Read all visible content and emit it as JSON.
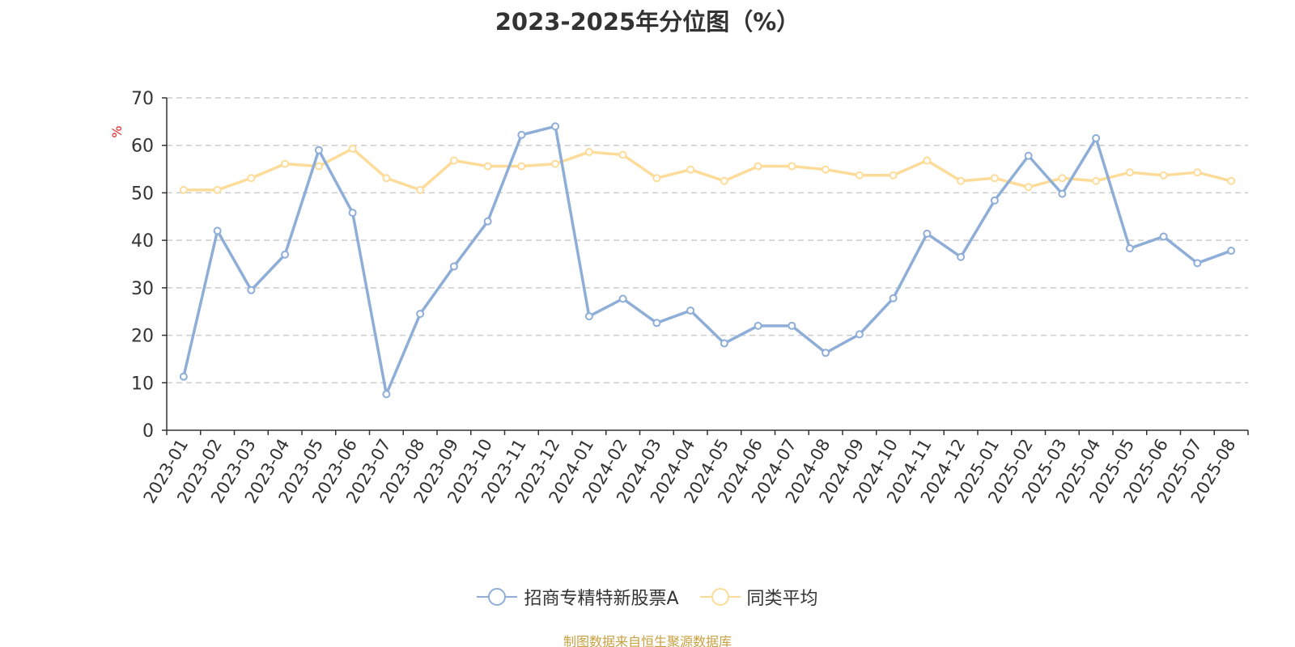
{
  "title": "2023-2025年分位图（%）",
  "source": "制图数据来自恒生聚源数据库",
  "colors": {
    "series1": "#8eaed8",
    "series2": "#fddc9a",
    "ylabel": "#e02020",
    "source": "#c8a040",
    "grid": "#cccccc",
    "axis": "#333333"
  },
  "chart_data": {
    "type": "line",
    "title": "2023-2025年分位图（%）",
    "ylabel": "%",
    "xlabel": "",
    "ylim": [
      0,
      70
    ],
    "yticks": [
      0,
      10,
      20,
      30,
      40,
      50,
      60,
      70
    ],
    "grid": true,
    "legend_position": "bottom-center",
    "categories": [
      "2023-01",
      "2023-02",
      "2023-03",
      "2023-04",
      "2023-05",
      "2023-06",
      "2023-07",
      "2023-08",
      "2023-09",
      "2023-10",
      "2023-11",
      "2023-12",
      "2024-01",
      "2024-02",
      "2024-03",
      "2024-04",
      "2024-05",
      "2024-06",
      "2024-07",
      "2024-08",
      "2024-09",
      "2024-10",
      "2024-11",
      "2024-12",
      "2025-01",
      "2025-02",
      "2025-03",
      "2025-04",
      "2025-05",
      "2025-06",
      "2025-07",
      "2025-08"
    ],
    "series": [
      {
        "name": "招商专精特新股票A",
        "values": [
          11.3,
          42,
          29.5,
          37,
          59,
          45.8,
          7.6,
          24.5,
          34.5,
          44,
          62.2,
          64,
          24,
          27.7,
          22.6,
          25.2,
          18.3,
          22,
          22,
          16.3,
          20.2,
          27.8,
          41.4,
          36.5,
          48.4,
          57.8,
          49.8,
          61.5,
          38.3,
          40.8,
          35.2,
          37.8
        ]
      },
      {
        "name": "同类平均",
        "values": [
          50.6,
          50.6,
          53.1,
          56.1,
          55.6,
          59.3,
          53.1,
          50.6,
          56.8,
          55.6,
          55.6,
          56.1,
          58.6,
          58,
          53.1,
          54.9,
          52.5,
          55.6,
          55.6,
          54.9,
          53.7,
          53.7,
          56.8,
          52.5,
          53.1,
          51.2,
          53.1,
          52.5,
          54.3,
          53.7,
          54.3,
          52.5
        ]
      }
    ]
  }
}
